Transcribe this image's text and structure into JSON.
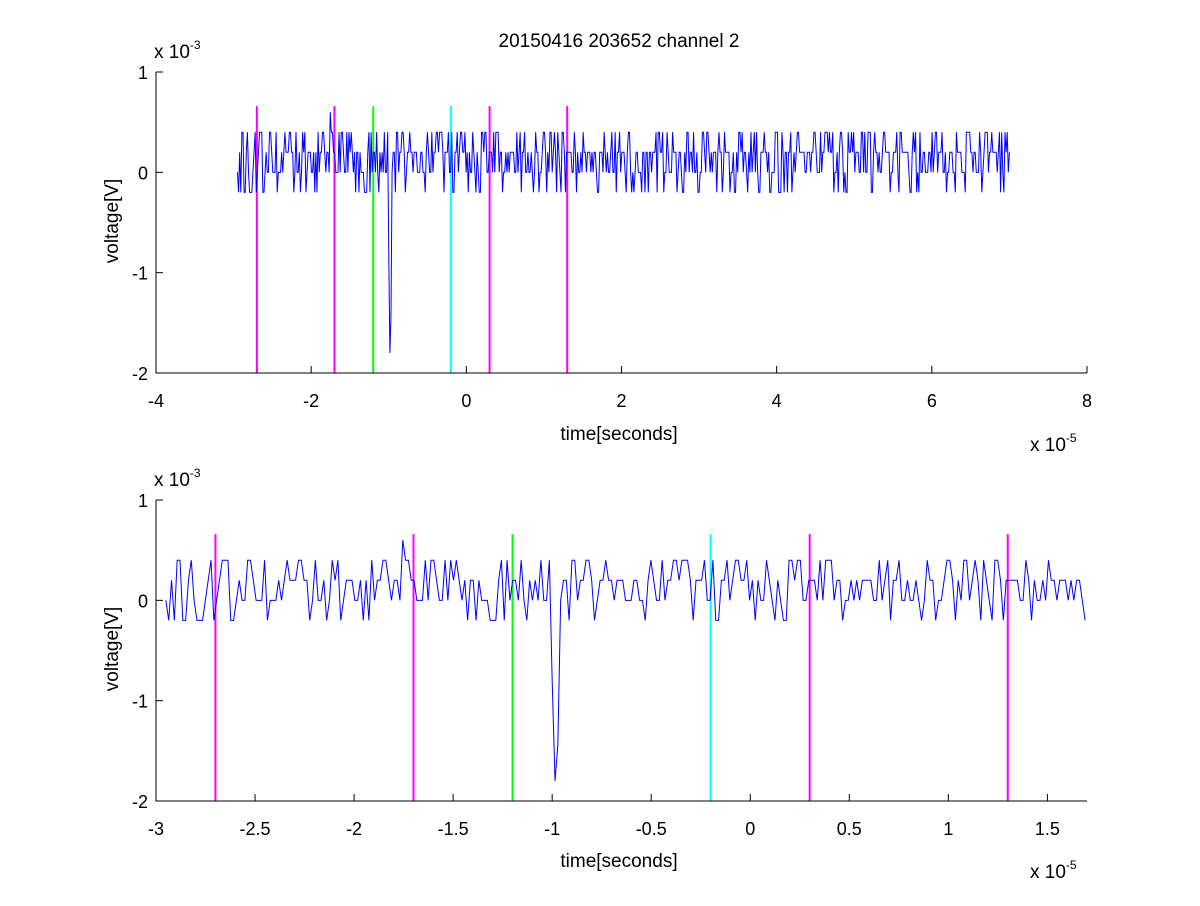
{
  "title": "20150416 203652 channel 2",
  "colors": {
    "signal": "#0000ff",
    "magenta": "#ff00ff",
    "green": "#00ff00",
    "cyan": "#00ffff",
    "axes": "#000000"
  },
  "chart_data": [
    {
      "type": "line",
      "xlabel": "time[seconds]",
      "ylabel": "voltage[V]",
      "x_multiplier": "x 10",
      "x_exponent": "-5",
      "y_multiplier": "x 10",
      "y_exponent": "-3",
      "xlim": [
        -4e-05,
        8e-05
      ],
      "ylim": [
        -0.002,
        0.001
      ],
      "xticks": [
        -4e-05,
        -2e-05,
        0,
        2e-05,
        4e-05,
        6e-05,
        8e-05
      ],
      "xtick_labels": [
        "-4",
        "-2",
        "0",
        "2",
        "4",
        "6",
        "8"
      ],
      "yticks": [
        -0.002,
        -0.001,
        0,
        0.001
      ],
      "ytick_labels": [
        "-2",
        "-1",
        "0",
        "1"
      ],
      "signal": {
        "x_start": -2.95e-05,
        "x_end": 7e-05,
        "baseline_levels": [
          0,
          0.0002
        ],
        "noise_min": -0.0002,
        "noise_max": 0.0004,
        "spikes": [
          {
            "x": -1.75e-05,
            "y": 0.0006
          },
          {
            "x": -9.8e-06,
            "y": -0.0018
          }
        ]
      },
      "markers": [
        {
          "x": -2.7e-05,
          "color": "magenta",
          "y_top": 0.00066
        },
        {
          "x": -1.7e-05,
          "color": "magenta",
          "y_top": 0.00066
        },
        {
          "x": -1.2e-05,
          "color": "green",
          "y_top": 0.00066
        },
        {
          "x": -2e-06,
          "color": "cyan",
          "y_top": 0.00066
        },
        {
          "x": 3e-06,
          "color": "magenta",
          "y_top": 0.00066
        },
        {
          "x": 1.3e-05,
          "color": "magenta",
          "y_top": 0.00066
        }
      ]
    },
    {
      "type": "line",
      "xlabel": "time[seconds]",
      "ylabel": "voltage[V]",
      "x_multiplier": "x 10",
      "x_exponent": "-5",
      "y_multiplier": "x 10",
      "y_exponent": "-3",
      "xlim": [
        -3e-05,
        1.7e-05
      ],
      "ylim": [
        -0.002,
        0.001
      ],
      "xticks": [
        -3e-05,
        -2.5e-05,
        -2e-05,
        -1.5e-05,
        -1e-05,
        -5e-06,
        0,
        5e-06,
        1e-05,
        1.5e-05
      ],
      "xtick_labels": [
        "-3",
        "-2.5",
        "-2",
        "-1.5",
        "-1",
        "-0.5",
        "0",
        "0.5",
        "1",
        "1.5"
      ],
      "yticks": [
        -0.002,
        -0.001,
        0,
        0.001
      ],
      "ytick_labels": [
        "-2",
        "-1",
        "0",
        "1"
      ],
      "signal": {
        "x_start": -2.95e-05,
        "x_end": 1.7e-05,
        "baseline_levels": [
          0,
          0.0002
        ],
        "noise_min": -0.0002,
        "noise_max": 0.0004,
        "spikes": [
          {
            "x": -1.75e-05,
            "y": 0.0006
          },
          {
            "x": -9.8e-06,
            "y": -0.0018
          }
        ]
      },
      "markers": [
        {
          "x": -2.7e-05,
          "color": "magenta",
          "y_top": 0.00066
        },
        {
          "x": -1.7e-05,
          "color": "magenta",
          "y_top": 0.00066
        },
        {
          "x": -1.2e-05,
          "color": "green",
          "y_top": 0.00066
        },
        {
          "x": -2e-06,
          "color": "cyan",
          "y_top": 0.00066
        },
        {
          "x": 3e-06,
          "color": "magenta",
          "y_top": 0.00066
        },
        {
          "x": 1.3e-05,
          "color": "magenta",
          "y_top": 0.00066
        }
      ]
    }
  ]
}
